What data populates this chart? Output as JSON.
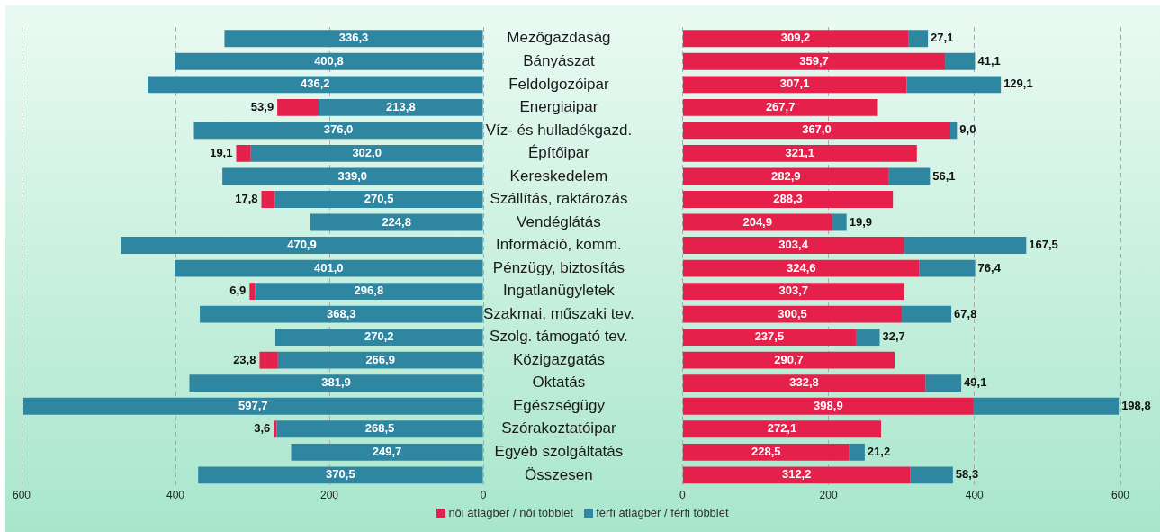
{
  "chart_data": [
    {
      "type": "bar",
      "orientation": "horizontal",
      "stacked": true,
      "categories": [
        "Mezőgazdaság",
        "Bányászat",
        "Feldolgozóipar",
        "Energiaipar",
        "Víz- és hulladékgazd.",
        "Építőipar",
        "Kereskedelem",
        "Szállítás, raktározás",
        "Vendéglátás",
        "Információ, komm.",
        "Pénzügy, biztosítás",
        "Ingatlanügyletek",
        "Szakmai, műszaki tev.",
        "Szolg. támogató tev.",
        "Közigazgatás",
        "Oktatás",
        "Egészségügy",
        "Szórakoztatóipar",
        "Egyéb szolgáltatás",
        "Összesen"
      ],
      "series": [
        {
          "color": "#2e86a1",
          "values": [
            336.3,
            400.8,
            436.2,
            213.8,
            376.0,
            302.0,
            339.0,
            270.5,
            224.8,
            470.9,
            401.0,
            296.8,
            368.3,
            270.2,
            266.9,
            381.9,
            597.7,
            268.5,
            249.7,
            370.5
          ],
          "value_labels": [
            "336,3",
            "400,8",
            "436,2",
            "213,8",
            "376,0",
            "302,0",
            "339,0",
            "270,5",
            "224,8",
            "470,9",
            "401,0",
            "296,8",
            "368,3",
            "270,2",
            "266,9",
            "381,9",
            "597,7",
            "268,5",
            "249,7",
            "370,5"
          ]
        },
        {
          "color": "#e5204a",
          "values": [
            null,
            null,
            null,
            53.9,
            null,
            19.1,
            null,
            17.8,
            null,
            null,
            null,
            6.9,
            null,
            null,
            23.8,
            null,
            null,
            3.6,
            null,
            null
          ],
          "value_labels": [
            null,
            null,
            null,
            "53,9",
            null,
            "19,1",
            null,
            "17,8",
            null,
            null,
            null,
            "6,9",
            null,
            null,
            "23,8",
            null,
            null,
            "3,6",
            null,
            null
          ]
        }
      ],
      "xlim": [
        600,
        0
      ],
      "xticks": [
        600,
        400,
        200,
        0
      ],
      "grid": "x"
    },
    {
      "type": "bar",
      "orientation": "horizontal",
      "stacked": true,
      "series": [
        {
          "name": "női átlagbér / női többlet",
          "color": "#e5204a",
          "values": [
            309.2,
            359.7,
            307.1,
            267.7,
            367.0,
            321.1,
            282.9,
            288.3,
            204.9,
            303.4,
            324.6,
            303.7,
            300.5,
            237.5,
            290.7,
            332.8,
            398.9,
            272.1,
            228.5,
            312.2
          ],
          "value_labels": [
            "309,2",
            "359,7",
            "307,1",
            "267,7",
            "367,0",
            "321,1",
            "282,9",
            "288,3",
            "204,9",
            "303,4",
            "324,6",
            "303,7",
            "300,5",
            "237,5",
            "290,7",
            "332,8",
            "398,9",
            "272,1",
            "228,5",
            "312,2"
          ]
        },
        {
          "name": "férfi átlagbér / férfi többlet",
          "color": "#2e86a1",
          "values": [
            27.1,
            41.1,
            129.1,
            null,
            9.0,
            null,
            56.1,
            null,
            19.9,
            167.5,
            76.4,
            null,
            67.8,
            32.7,
            null,
            49.1,
            198.8,
            null,
            21.2,
            58.3
          ],
          "value_labels": [
            "27,1",
            "41,1",
            "129,1",
            null,
            "9,0",
            null,
            "56,1",
            null,
            "19,9",
            "167,5",
            "76,4",
            null,
            "67,8",
            "32,7",
            null,
            "49,1",
            "198,8",
            null,
            "21,2",
            "58,3"
          ]
        }
      ],
      "xlim": [
        0,
        600
      ],
      "xticks": [
        0,
        200,
        400,
        600
      ],
      "grid": "x",
      "legend": "bottom",
      "tick_labels": "x"
    }
  ]
}
